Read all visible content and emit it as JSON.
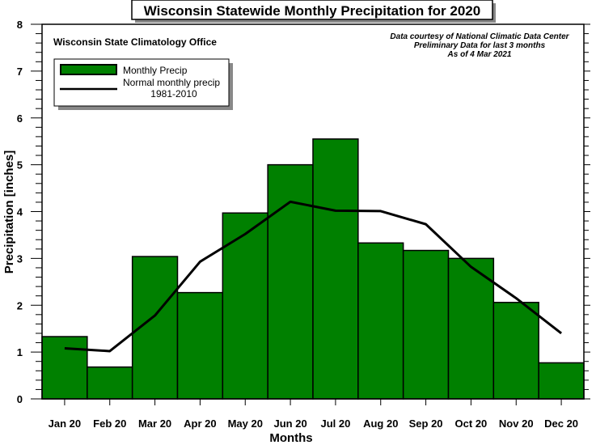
{
  "chart_data": {
    "type": "bar",
    "title": "Wisconsin Statewide Monthly Precipitation for 2020",
    "xlabel": "Months",
    "ylabel": "Precipitation [inches]",
    "ylim": [
      0,
      8
    ],
    "yticks": [
      "0",
      "1",
      "2",
      "3",
      "4",
      "5",
      "6",
      "7",
      "8"
    ],
    "categories": [
      "Jan 20",
      "Feb 20",
      "Mar 20",
      "Apr 20",
      "May 20",
      "Jun 20",
      "Jul 20",
      "Aug 20",
      "Sep 20",
      "Oct 20",
      "Nov 20",
      "Dec 20"
    ],
    "series": [
      {
        "name": "Monthly Precip",
        "kind": "bar",
        "color": "#008000",
        "values": [
          1.33,
          0.68,
          3.04,
          2.27,
          3.97,
          5.0,
          5.55,
          3.33,
          3.17,
          3.0,
          2.06,
          0.77
        ]
      },
      {
        "name": "Normal monthly precip",
        "name_line2": "1981-2010",
        "kind": "line",
        "color": "#000000",
        "values": [
          1.08,
          1.02,
          1.78,
          2.93,
          3.52,
          4.21,
          4.02,
          4.01,
          3.73,
          2.82,
          2.15,
          1.4
        ]
      }
    ],
    "annotations": {
      "office": "Wisconsin State Climatology Office",
      "credit_lines": [
        "Data courtesy of National Climatic Data Center",
        "Preliminary Data for last 3 months",
        "As of 4 Mar 2021"
      ]
    },
    "legend_placement": "top-left",
    "grid": false
  }
}
